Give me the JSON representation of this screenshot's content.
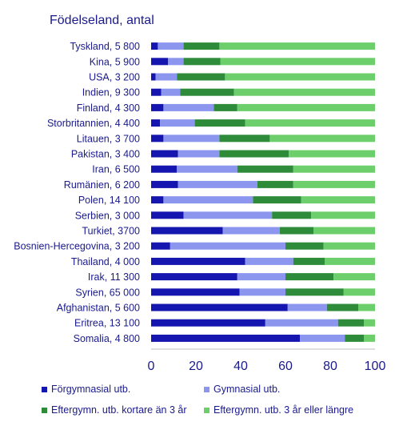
{
  "chart_data": {
    "type": "bar",
    "stacked": true,
    "orientation": "horizontal",
    "title": "Födelseland, antal",
    "categories": [
      "Tyskland, 5 800",
      "Kina, 5 900",
      "USA, 3 200",
      "Indien, 9 300",
      "Finland, 4 300",
      "Storbritannien, 4 400",
      "Litauen, 3 700",
      "Pakistan, 3 400",
      "Iran, 6 500",
      "Rumänien, 6 200",
      "Polen, 14 100",
      "Serbien, 3 000",
      "Turkiet, 3700",
      "Bosnien-Hercegovina, 3 200",
      "Thailand, 4 000",
      "Irak, 11 300",
      "Syrien, 65 000",
      "Afghanistan, 5 600",
      "Eritrea, 13 100",
      "Somalia, 4 800"
    ],
    "series": [
      {
        "name": "Förgymnasial utb.",
        "color": "#1515b0",
        "values": [
          3,
          7.5,
          2,
          4.5,
          5.5,
          4,
          5.5,
          12,
          11.5,
          12,
          5.5,
          14.5,
          32,
          8.5,
          42,
          38.5,
          39.5,
          61,
          51,
          66.5
        ]
      },
      {
        "name": "Gymnasial utb.",
        "color": "#8c96ee",
        "values": [
          11.5,
          7,
          9.5,
          8.5,
          22.5,
          15.5,
          25,
          18.5,
          27,
          35.5,
          40,
          39.5,
          25.5,
          51.5,
          21.5,
          21.5,
          20.5,
          17.5,
          32.5,
          20
        ]
      },
      {
        "name": "Eftergymn. utb. kortare än 3 år",
        "color": "#2e8b3a",
        "values": [
          16,
          16.5,
          21.5,
          24,
          10.5,
          22.5,
          22.5,
          31,
          25,
          16,
          21.5,
          17.5,
          15,
          17,
          14,
          21.5,
          26,
          14,
          11.5,
          8.5
        ]
      },
      {
        "name": "Eftergymn. utb. 3 år eller längre",
        "color": "#6ccf6c",
        "values": [
          69.5,
          69,
          67,
          63,
          61.5,
          58,
          47,
          38.5,
          36.5,
          36.5,
          33,
          28.5,
          27.5,
          23,
          22.5,
          18.5,
          14,
          7.5,
          5,
          5
        ]
      }
    ],
    "xlim": [
      0,
      100
    ],
    "xticks": [
      "0",
      "20",
      "40",
      "60",
      "80",
      "100"
    ],
    "grid": false,
    "legend_placement": "bottom"
  }
}
